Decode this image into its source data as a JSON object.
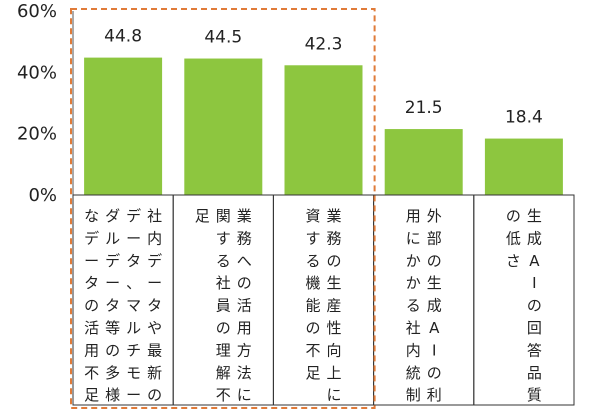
{
  "chart_data": {
    "type": "bar",
    "y_ticks": [
      "60%",
      "40%",
      "20%",
      "0%"
    ],
    "ylim": [
      0,
      60
    ],
    "grid": false,
    "categories": [
      "社内データや最新のデータ、マルチモーダルデータ等の多様なデータの活用不足",
      "業務への活用方法に関する社員の理解不足",
      "業務の生産性向上に資する機能の不足",
      "外部の生成AIの利用にかかる社内統制",
      "生成AIの回答品質の低さ"
    ],
    "category_columns": [
      [
        "社内データや最新の",
        "データ、マルチモー",
        "ダルデータ等の多様",
        "なデータの活用不足"
      ],
      [
        "業務への活用方法に",
        "関する社員の理解不",
        "足"
      ],
      [
        "業務の生産性向上に",
        "資する機能の不足"
      ],
      [
        "外部の生成AIの利",
        "用にかかる社内統制"
      ],
      [
        "生成AIの回答品質",
        "の低さ"
      ]
    ],
    "values": [
      44.8,
      44.5,
      42.3,
      21.5,
      18.4
    ],
    "value_labels": [
      "44.8",
      "44.5",
      "42.3",
      "21.5",
      "18.4"
    ],
    "bar_color": "#8dc63f",
    "highlight_color": "#e07b39",
    "highlighted_categories": [
      0,
      1,
      2
    ]
  }
}
